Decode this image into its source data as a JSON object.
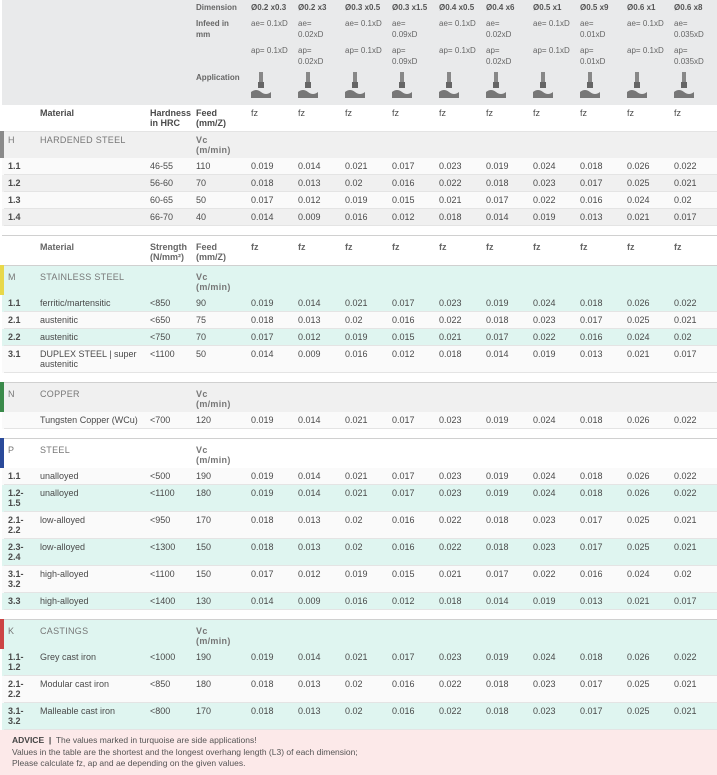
{
  "header": {
    "dimension_label": "Dimension",
    "infeed_label": "Infeed in mm",
    "application_label": "Application",
    "material_label": "Material",
    "hardness_label": "Hardness in HRC",
    "strength_label": "Strength (N/mm²)",
    "feed_label": "Feed (mm/Z)",
    "vc_label": "Vc (m/min)",
    "fz_label": "fz",
    "columns": [
      {
        "dim": "Ø0.2 x0.3",
        "ae": "ae= 0.1xD",
        "ap": "ap= 0.1xD"
      },
      {
        "dim": "Ø0.2 x3",
        "ae": "ae= 0.02xD",
        "ap": "ap= 0.02xD"
      },
      {
        "dim": "Ø0.3 x0.5",
        "ae": "ae= 0.1xD",
        "ap": "ap= 0.1xD"
      },
      {
        "dim": "Ø0.3 x1.5",
        "ae": "ae= 0.09xD",
        "ap": "ap= 0.09xD"
      },
      {
        "dim": "Ø0.4 x0.5",
        "ae": "ae= 0.1xD",
        "ap": "ap= 0.1xD"
      },
      {
        "dim": "Ø0.4 x6",
        "ae": "ae= 0.02xD",
        "ap": "ap= 0.02xD"
      },
      {
        "dim": "Ø0.5 x1",
        "ae": "ae= 0.1xD",
        "ap": "ap= 0.1xD"
      },
      {
        "dim": "Ø0.5 x9",
        "ae": "ae= 0.01xD",
        "ap": "ap= 0.01xD"
      },
      {
        "dim": "Ø0.6 x1",
        "ae": "ae= 0.1xD",
        "ap": "ap= 0.1xD"
      },
      {
        "dim": "Ø0.6 x8",
        "ae": "ae= 0.035xD",
        "ap": "ap= 0.035xD"
      }
    ]
  },
  "sections": [
    {
      "code": "H",
      "name": "HARDENED STEEL",
      "group_class": "group-h",
      "strength_col": "Hardness in HRC",
      "rows": [
        {
          "code": "1.1",
          "mat": "",
          "hard": "46-55",
          "vc": "110",
          "fz": [
            "0.019",
            "0.014",
            "0.021",
            "0.017",
            "0.023",
            "0.019",
            "0.024",
            "0.018",
            "0.026",
            "0.022"
          ],
          "cls": "stripe-b"
        },
        {
          "code": "1.2",
          "mat": "",
          "hard": "56-60",
          "vc": "70",
          "fz": [
            "0.018",
            "0.013",
            "0.02",
            "0.016",
            "0.022",
            "0.018",
            "0.023",
            "0.017",
            "0.025",
            "0.021"
          ],
          "cls": "stripe-a"
        },
        {
          "code": "1.3",
          "mat": "",
          "hard": "60-65",
          "vc": "50",
          "fz": [
            "0.017",
            "0.012",
            "0.019",
            "0.015",
            "0.021",
            "0.017",
            "0.022",
            "0.016",
            "0.024",
            "0.02"
          ],
          "cls": "stripe-b"
        },
        {
          "code": "1.4",
          "mat": "",
          "hard": "66-70",
          "vc": "40",
          "fz": [
            "0.014",
            "0.009",
            "0.016",
            "0.012",
            "0.018",
            "0.014",
            "0.019",
            "0.013",
            "0.021",
            "0.017"
          ],
          "cls": "stripe-a"
        }
      ]
    },
    {
      "code": "M",
      "name": "STAINLESS STEEL",
      "group_class": "group-m",
      "strength_col": "Strength (N/mm²)",
      "rows": [
        {
          "code": "1.1",
          "mat": "ferritic/martensitic",
          "hard": "<850",
          "vc": "90",
          "fz": [
            "0.019",
            "0.014",
            "0.021",
            "0.017",
            "0.023",
            "0.019",
            "0.024",
            "0.018",
            "0.026",
            "0.022"
          ],
          "cls": "stripe-teal"
        },
        {
          "code": "2.1",
          "mat": "austenitic",
          "hard": "<650",
          "vc": "75",
          "fz": [
            "0.018",
            "0.013",
            "0.02",
            "0.016",
            "0.022",
            "0.018",
            "0.023",
            "0.017",
            "0.025",
            "0.021"
          ],
          "cls": "stripe-b"
        },
        {
          "code": "2.2",
          "mat": "austenitic",
          "hard": "<750",
          "vc": "70",
          "fz": [
            "0.017",
            "0.012",
            "0.019",
            "0.015",
            "0.021",
            "0.017",
            "0.022",
            "0.016",
            "0.024",
            "0.02"
          ],
          "cls": "stripe-teal"
        },
        {
          "code": "3.1",
          "mat": "DUPLEX STEEL | super austenitic",
          "hard": "<1100",
          "vc": "50",
          "fz": [
            "0.014",
            "0.009",
            "0.016",
            "0.012",
            "0.018",
            "0.014",
            "0.019",
            "0.013",
            "0.021",
            "0.017"
          ],
          "cls": "stripe-b"
        }
      ]
    },
    {
      "code": "N",
      "name": "COPPER",
      "group_class": "group-n",
      "strength_col": "",
      "rows": [
        {
          "code": "",
          "mat": "Tungsten Copper (WCu)",
          "hard": "<700",
          "vc": "120",
          "fz": [
            "0.019",
            "0.014",
            "0.021",
            "0.017",
            "0.023",
            "0.019",
            "0.024",
            "0.018",
            "0.026",
            "0.022"
          ],
          "cls": "stripe-b"
        }
      ]
    },
    {
      "code": "P",
      "name": "STEEL",
      "group_class": "group-p",
      "strength_col": "",
      "rows": [
        {
          "code": "1.1",
          "mat": "unalloyed",
          "hard": "<500",
          "vc": "190",
          "fz": [
            "0.019",
            "0.014",
            "0.021",
            "0.017",
            "0.023",
            "0.019",
            "0.024",
            "0.018",
            "0.026",
            "0.022"
          ],
          "cls": "stripe-b"
        },
        {
          "code": "1.2-1.5",
          "mat": "unalloyed",
          "hard": "<1100",
          "vc": "180",
          "fz": [
            "0.019",
            "0.014",
            "0.021",
            "0.017",
            "0.023",
            "0.019",
            "0.024",
            "0.018",
            "0.026",
            "0.022"
          ],
          "cls": "stripe-teal"
        },
        {
          "code": "2.1-2.2",
          "mat": "low-alloyed",
          "hard": "<950",
          "vc": "170",
          "fz": [
            "0.018",
            "0.013",
            "0.02",
            "0.016",
            "0.022",
            "0.018",
            "0.023",
            "0.017",
            "0.025",
            "0.021"
          ],
          "cls": "stripe-b"
        },
        {
          "code": "2.3-2.4",
          "mat": "low-alloyed",
          "hard": "<1300",
          "vc": "150",
          "fz": [
            "0.018",
            "0.013",
            "0.02",
            "0.016",
            "0.022",
            "0.018",
            "0.023",
            "0.017",
            "0.025",
            "0.021"
          ],
          "cls": "stripe-teal"
        },
        {
          "code": "3.1-3.2",
          "mat": "high-alloyed",
          "hard": "<1100",
          "vc": "150",
          "fz": [
            "0.017",
            "0.012",
            "0.019",
            "0.015",
            "0.021",
            "0.017",
            "0.022",
            "0.016",
            "0.024",
            "0.02"
          ],
          "cls": "stripe-b"
        },
        {
          "code": "3.3",
          "mat": "high-alloyed",
          "hard": "<1400",
          "vc": "130",
          "fz": [
            "0.014",
            "0.009",
            "0.016",
            "0.012",
            "0.018",
            "0.014",
            "0.019",
            "0.013",
            "0.021",
            "0.017"
          ],
          "cls": "stripe-teal"
        }
      ]
    },
    {
      "code": "K",
      "name": "CASTINGS",
      "group_class": "group-k",
      "strength_col": "",
      "rows": [
        {
          "code": "1.1-1.2",
          "mat": "Grey cast iron",
          "hard": "<1000",
          "vc": "190",
          "fz": [
            "0.019",
            "0.014",
            "0.021",
            "0.017",
            "0.023",
            "0.019",
            "0.024",
            "0.018",
            "0.026",
            "0.022"
          ],
          "cls": "stripe-teal"
        },
        {
          "code": "2.1-2.2",
          "mat": "Modular cast iron",
          "hard": "<850",
          "vc": "180",
          "fz": [
            "0.018",
            "0.013",
            "0.02",
            "0.016",
            "0.022",
            "0.018",
            "0.023",
            "0.017",
            "0.025",
            "0.021"
          ],
          "cls": "stripe-b"
        },
        {
          "code": "3.1-3.2",
          "mat": "Malleable cast iron",
          "hard": "<800",
          "vc": "170",
          "fz": [
            "0.018",
            "0.013",
            "0.02",
            "0.016",
            "0.022",
            "0.018",
            "0.023",
            "0.017",
            "0.025",
            "0.021"
          ],
          "cls": "stripe-teal"
        }
      ]
    }
  ],
  "advice": {
    "label": "ADVICE",
    "line1": "The values marked in turquoise are side applications!",
    "line2": "Values in the table are the shortest and the longest overhang length (L3) of each dimension;",
    "line3": "Please calculate fz, ap and ae depending on the given values."
  }
}
